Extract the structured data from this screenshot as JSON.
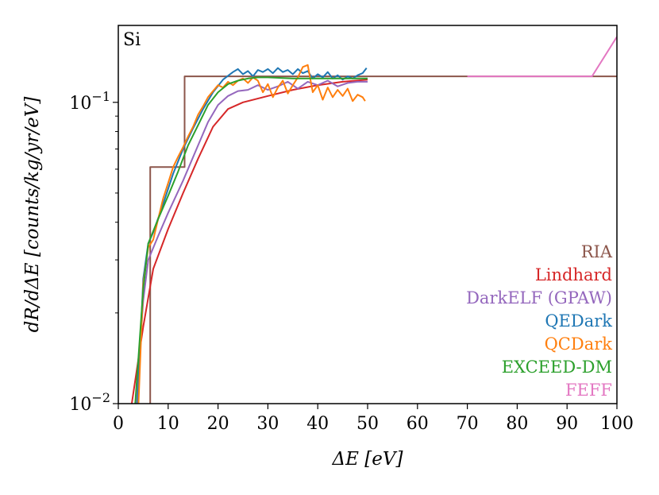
{
  "chart_data": {
    "type": "line",
    "panel_label": "Si",
    "xlabel": "ΔE [eV]",
    "ylabel": "dR/dΔE [counts/kg/yr/eV]",
    "xlim": [
      0,
      100
    ],
    "ylim": [
      0.01,
      0.18
    ],
    "yscale": "log",
    "grid": false,
    "legend_position": "lower-right",
    "x_ticks": [
      0,
      10,
      20,
      30,
      40,
      50,
      60,
      70,
      80,
      90,
      100
    ],
    "x_tick_labels": [
      "0",
      "10",
      "20",
      "30",
      "40",
      "50",
      "60",
      "70",
      "80",
      "90",
      "100"
    ],
    "y_ticks": [
      0.01,
      0.1
    ],
    "y_tick_labels": [
      "10−2",
      "10−1"
    ],
    "series": [
      {
        "name": "RIA",
        "color": "#8c564b",
        "step": true,
        "x": [
          6.4,
          6.4,
          13.3,
          13.3,
          100
        ],
        "y": [
          0.0095,
          0.061,
          0.061,
          0.122,
          0.122
        ]
      },
      {
        "name": "Lindhard",
        "color": "#d62728",
        "x": [
          2.5,
          5,
          7,
          10,
          13,
          16,
          19,
          22,
          25,
          30,
          35,
          40,
          45,
          50
        ],
        "y": [
          0.0095,
          0.018,
          0.028,
          0.038,
          0.05,
          0.065,
          0.083,
          0.095,
          0.1,
          0.105,
          0.11,
          0.114,
          0.117,
          0.119
        ]
      },
      {
        "name": "DarkELF (GPAW)",
        "color": "#9467bd",
        "x": [
          3.5,
          5,
          6,
          8,
          10,
          13,
          16,
          18,
          20,
          22,
          24,
          26,
          28,
          30,
          32,
          34,
          36,
          38,
          40,
          42,
          44,
          46,
          48,
          50
        ],
        "y": [
          0.0095,
          0.022,
          0.03,
          0.036,
          0.043,
          0.055,
          0.072,
          0.086,
          0.098,
          0.105,
          0.109,
          0.11,
          0.114,
          0.11,
          0.113,
          0.117,
          0.111,
          0.117,
          0.114,
          0.118,
          0.113,
          0.116,
          0.117,
          0.117
        ]
      },
      {
        "name": "QEDark",
        "color": "#1f77b4",
        "x": [
          3.8,
          5,
          6,
          7,
          9,
          11,
          13,
          15,
          17,
          19,
          21,
          23,
          24,
          25,
          26,
          27,
          28,
          29,
          30,
          31,
          32,
          33,
          34,
          35,
          36,
          37,
          38,
          39,
          40,
          41,
          42,
          43,
          44,
          45,
          46,
          47,
          48,
          49,
          49.8
        ],
        "y": [
          0.0095,
          0.026,
          0.034,
          0.037,
          0.046,
          0.058,
          0.07,
          0.082,
          0.095,
          0.108,
          0.119,
          0.126,
          0.129,
          0.124,
          0.127,
          0.122,
          0.128,
          0.126,
          0.129,
          0.125,
          0.13,
          0.126,
          0.128,
          0.124,
          0.129,
          0.125,
          0.127,
          0.12,
          0.124,
          0.121,
          0.126,
          0.12,
          0.123,
          0.119,
          0.122,
          0.12,
          0.123,
          0.125,
          0.13
        ]
      },
      {
        "name": "QCDark",
        "color": "#ff7f0e",
        "x": [
          4,
          5,
          6,
          7,
          8,
          9,
          10,
          11,
          12,
          13,
          14,
          15,
          16,
          17,
          18,
          19,
          20,
          21,
          22,
          23,
          24,
          25,
          26,
          27,
          28,
          29,
          30,
          31,
          32,
          33,
          34,
          35,
          36,
          37,
          38,
          39,
          40,
          41,
          42,
          43,
          44,
          45,
          46,
          47,
          48,
          49,
          49.5
        ],
        "y": [
          0.0095,
          0.025,
          0.033,
          0.035,
          0.041,
          0.048,
          0.054,
          0.061,
          0.066,
          0.071,
          0.077,
          0.083,
          0.091,
          0.097,
          0.104,
          0.109,
          0.114,
          0.112,
          0.117,
          0.114,
          0.118,
          0.12,
          0.116,
          0.121,
          0.118,
          0.108,
          0.115,
          0.104,
          0.112,
          0.118,
          0.107,
          0.114,
          0.121,
          0.131,
          0.133,
          0.108,
          0.114,
          0.102,
          0.112,
          0.104,
          0.11,
          0.105,
          0.111,
          0.101,
          0.106,
          0.104,
          0.101
        ]
      },
      {
        "name": "EXCEED-DM",
        "color": "#2ca02c",
        "x": [
          3.3,
          5,
          6,
          8,
          10,
          12,
          14,
          16,
          18,
          20,
          22,
          24,
          26,
          28,
          30,
          35,
          40,
          45,
          50
        ],
        "y": [
          0.0095,
          0.024,
          0.034,
          0.041,
          0.049,
          0.059,
          0.072,
          0.084,
          0.098,
          0.108,
          0.115,
          0.118,
          0.12,
          0.121,
          0.121,
          0.12,
          0.12,
          0.12,
          0.12
        ]
      },
      {
        "name": "FEFF",
        "color": "#e377c2",
        "x": [
          70,
          95,
          100
        ],
        "y": [
          0.122,
          0.122,
          0.165
        ]
      }
    ]
  }
}
